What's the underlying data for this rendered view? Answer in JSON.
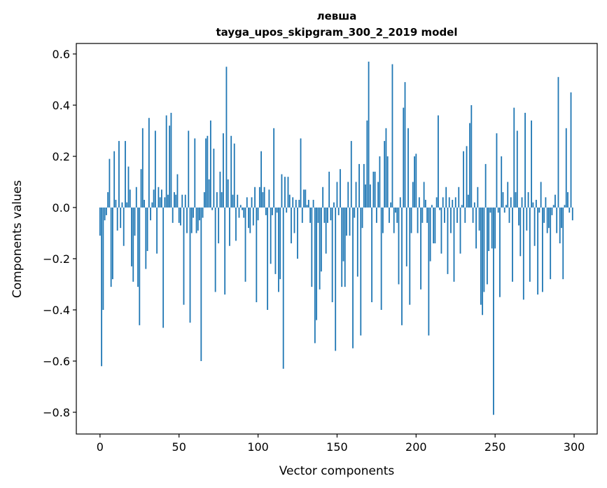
{
  "chart_data": {
    "type": "bar",
    "title": "левша",
    "subtitle": "tayga_upos_skipgram_300_2_2019 model",
    "xlabel": "Vector components",
    "ylabel": "Components values",
    "xlim": [
      -15,
      314.6
    ],
    "ylim": [
      -0.885,
      0.641
    ],
    "xticks": [
      0,
      50,
      100,
      150,
      200,
      250,
      300
    ],
    "xtick_labels": [
      "0",
      "50",
      "100",
      "150",
      "200",
      "250",
      "300"
    ],
    "yticks": [
      -0.8,
      -0.6,
      -0.4,
      -0.2,
      0.0,
      0.2,
      0.4,
      0.6
    ],
    "ytick_labels": [
      "−0.8",
      "−0.6",
      "−0.4",
      "−0.2",
      "0.0",
      "0.2",
      "0.4",
      "0.6"
    ],
    "grid": false,
    "color": "#1f77b4",
    "values": [
      -0.11,
      -0.62,
      -0.4,
      -0.05,
      -0.03,
      0.06,
      0.19,
      -0.31,
      -0.28,
      0.22,
      0.03,
      -0.09,
      0.26,
      -0.08,
      0.02,
      -0.15,
      0.26,
      0.02,
      0.16,
      0.07,
      -0.23,
      -0.29,
      -0.11,
      0.08,
      -0.31,
      -0.46,
      0.15,
      0.31,
      0.03,
      -0.24,
      -0.17,
      0.35,
      -0.05,
      0.02,
      0.07,
      0.3,
      -0.18,
      0.08,
      0.04,
      0.07,
      -0.47,
      0.04,
      0.36,
      0.05,
      0.32,
      0.37,
      -0.06,
      0.06,
      0.05,
      0.13,
      -0.06,
      -0.07,
      0.05,
      -0.38,
      0.05,
      -0.1,
      0.3,
      -0.45,
      -0.1,
      -0.04,
      0.27,
      -0.1,
      -0.09,
      -0.05,
      -0.6,
      -0.04,
      0.06,
      0.27,
      0.28,
      0.11,
      0.34,
      -0.01,
      0.23,
      -0.33,
      0.06,
      -0.14,
      0.14,
      0.06,
      0.29,
      -0.34,
      0.55,
      0.11,
      -0.15,
      0.28,
      0.05,
      0.25,
      -0.13,
      0.05,
      -0.04,
      0.01,
      -0.01,
      -0.04,
      -0.29,
      0.04,
      -0.08,
      -0.1,
      0.04,
      -0.07,
      0.08,
      -0.37,
      -0.05,
      0.08,
      0.22,
      0.06,
      0.08,
      -0.03,
      -0.4,
      0.07,
      -0.22,
      -0.03,
      0.31,
      -0.26,
      -0.02,
      -0.33,
      -0.28,
      0.13,
      -0.63,
      0.12,
      -0.02,
      0.12,
      0.05,
      -0.14,
      0.04,
      -0.1,
      0.03,
      -0.2,
      0.03,
      0.27,
      -0.06,
      0.07,
      0.07,
      0.01,
      0.03,
      -0.06,
      -0.31,
      0.03,
      -0.53,
      -0.44,
      -0.06,
      -0.32,
      -0.25,
      0.08,
      -0.06,
      -0.18,
      -0.06,
      0.14,
      -0.05,
      -0.37,
      0.02,
      -0.56,
      0.1,
      -0.03,
      0.15,
      -0.31,
      -0.21,
      -0.31,
      -0.11,
      0.1,
      -0.11,
      0.26,
      -0.55,
      -0.04,
      0.1,
      -0.27,
      0.17,
      -0.5,
      -0.08,
      0.17,
      0.09,
      0.34,
      0.57,
      0.09,
      -0.37,
      0.14,
      0.14,
      -0.06,
      0.1,
      0.2,
      -0.4,
      -0.1,
      0.26,
      0.31,
      0.2,
      -0.06,
      0.02,
      0.56,
      -0.1,
      -0.02,
      -0.06,
      -0.3,
      0.04,
      -0.46,
      0.39,
      0.49,
      -0.23,
      0.31,
      -0.38,
      -0.1,
      0.1,
      0.2,
      0.21,
      -0.1,
      0.04,
      -0.32,
      -0.06,
      0.1,
      0.03,
      -0.06,
      -0.5,
      -0.21,
      0.01,
      -0.14,
      -0.14,
      0.04,
      0.36,
      -0.01,
      -0.18,
      0.04,
      -0.06,
      0.08,
      -0.26,
      0.04,
      -0.1,
      0.03,
      -0.29,
      0.04,
      -0.06,
      0.08,
      -0.18,
      0.01,
      0.22,
      -0.06,
      0.24,
      0.05,
      0.33,
      0.4,
      -0.06,
      0.02,
      -0.16,
      0.08,
      -0.09,
      -0.38,
      -0.42,
      -0.33,
      0.17,
      -0.3,
      -0.17,
      -0.02,
      -0.16,
      -0.81,
      -0.16,
      0.29,
      -0.02,
      -0.35,
      0.2,
      0.06,
      -0.02,
      0.01,
      0.1,
      -0.06,
      0.04,
      -0.29,
      0.39,
      0.06,
      0.3,
      -0.07,
      -0.19,
      0.04,
      -0.36,
      0.37,
      -0.09,
      0.06,
      -0.29,
      0.34,
      0.02,
      -0.15,
      0.03,
      -0.34,
      -0.02,
      0.1,
      -0.33,
      -0.06,
      0.04,
      -0.1,
      -0.08,
      -0.28,
      -0.03,
      0.01,
      0.05,
      -0.1,
      0.51,
      -0.14,
      -0.08,
      -0.28,
      0.01,
      0.31,
      0.06,
      -0.02,
      0.45,
      -0.05
    ]
  }
}
